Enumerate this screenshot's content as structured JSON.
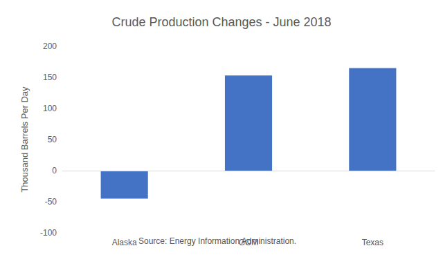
{
  "chart_data": {
    "type": "bar",
    "title": "Crude Production Changes - June 2018",
    "y_label": "Thousand Barrels Per Day",
    "annotation": "Source: Energy Information Administration.",
    "categories": [
      "Alaska",
      "GOM",
      "Texas"
    ],
    "values": [
      -45,
      153,
      165
    ],
    "color": "#4472c4",
    "ylim": [
      -100,
      200
    ],
    "yticks": [
      -100,
      -50,
      0,
      50,
      100,
      150,
      200
    ],
    "grid": false
  }
}
